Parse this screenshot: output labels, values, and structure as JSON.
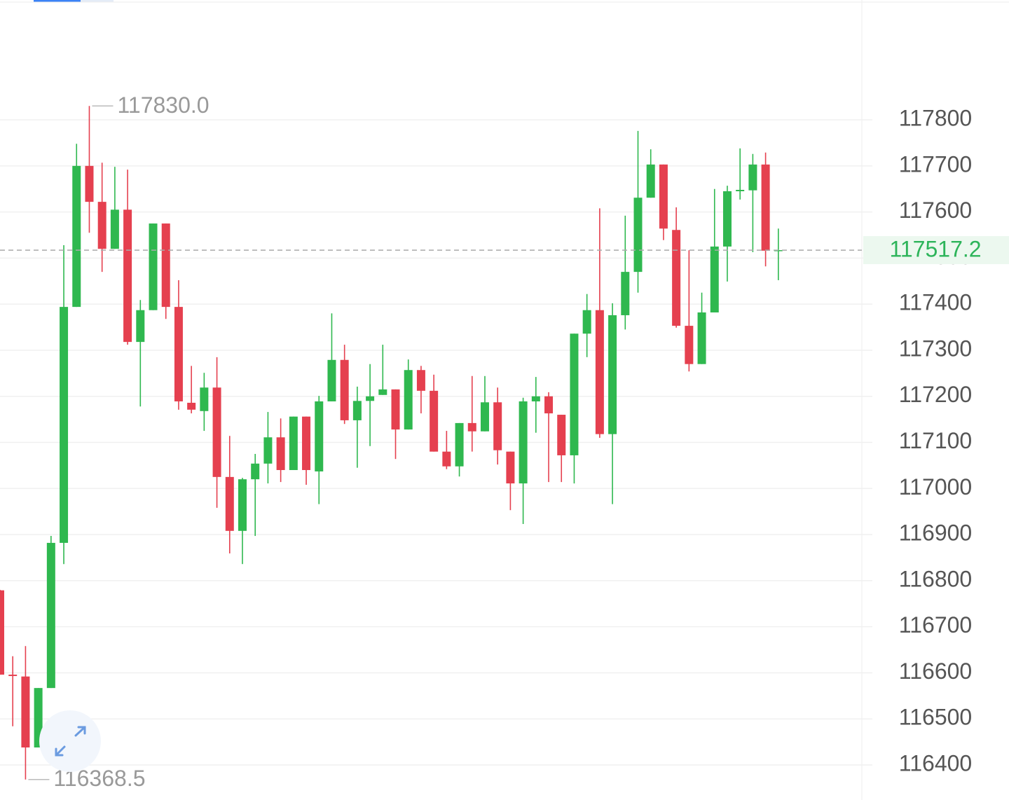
{
  "chart_data": {
    "type": "candlestick",
    "up_color": "#2fb84f",
    "down_color": "#e5404f",
    "grid": true,
    "high_label": "117830.0",
    "low_label": "116368.5",
    "ylim": [
      116324,
      118060
    ],
    "yticks": [
      116400,
      116500,
      116600,
      116700,
      116800,
      116900,
      117000,
      117100,
      117200,
      117300,
      117400,
      117500,
      117600,
      117700,
      117800
    ],
    "open": [
      116779,
      116596,
      116592,
      116438,
      116567,
      116882,
      117394,
      117700,
      117622,
      117520,
      117605,
      117318,
      117387,
      117575,
      117394,
      117186,
      117168,
      117219,
      117025,
      116908,
      117020,
      117054,
      117111,
      117040,
      117156,
      117037,
      117189,
      117279,
      117148,
      117190,
      117203,
      117215,
      117128,
      117257,
      117212,
      117080,
      117048,
      117142,
      117124,
      117187,
      117080,
      117011,
      117189,
      117200,
      117160,
      117072,
      117336,
      117387,
      117118,
      117376,
      117470,
      117631,
      117703,
      117561,
      117353,
      117270,
      117382,
      117525,
      117645,
      117647,
      117703,
      117516
    ],
    "high": [
      116780,
      116636,
      116658,
      116567,
      116897,
      117528,
      117748,
      117830,
      117707,
      117698,
      117692,
      117409,
      117575,
      117575,
      117452,
      117266,
      117251,
      117285,
      117114,
      117023,
      117075,
      117166,
      117152,
      117156,
      117156,
      117201,
      117380,
      117312,
      117221,
      117270,
      117312,
      117215,
      117280,
      117266,
      117247,
      117125,
      117142,
      117244,
      117244,
      117219,
      117080,
      117197,
      117242,
      117209,
      117160,
      117336,
      117422,
      117608,
      117402,
      117592,
      117776,
      117736,
      117703,
      117610,
      117517,
      117425,
      117650,
      117657,
      117738,
      117726,
      117729,
      117564
    ],
    "low": [
      116596,
      116484,
      116368.5,
      116438,
      116567,
      116836,
      117394,
      117555,
      117470,
      117520,
      117312,
      117178,
      117387,
      117368,
      117171,
      117163,
      117125,
      116958,
      116859,
      116836,
      116897,
      117011,
      117014,
      117040,
      117008,
      116966,
      117189,
      117140,
      117045,
      117092,
      117203,
      117064,
      117128,
      117163,
      117080,
      117042,
      117026,
      117080,
      117124,
      117052,
      116953,
      116923,
      117121,
      117014,
      117014,
      117011,
      117285,
      117110,
      116966,
      117345,
      117425,
      117631,
      117539,
      117349,
      117254,
      117270,
      117382,
      117449,
      117627,
      117513,
      117482,
      117452
    ],
    "close": [
      116596,
      116593,
      116438,
      116567,
      116882,
      117394,
      117700,
      117622,
      117520,
      117605,
      117318,
      117387,
      117575,
      117394,
      117189,
      117171,
      117219,
      117025,
      116908,
      117020,
      117054,
      117111,
      117040,
      117156,
      117040,
      117189,
      117279,
      117148,
      117190,
      117200,
      117215,
      117128,
      117257,
      117212,
      117080,
      117048,
      117142,
      117124,
      117187,
      117083,
      117011,
      117189,
      117200,
      117163,
      117072,
      117336,
      117387,
      117118,
      117376,
      117470,
      117631,
      117703,
      117564,
      117353,
      117270,
      117382,
      117525,
      117645,
      117648,
      117703,
      117516,
      117517.2
    ]
  }
}
